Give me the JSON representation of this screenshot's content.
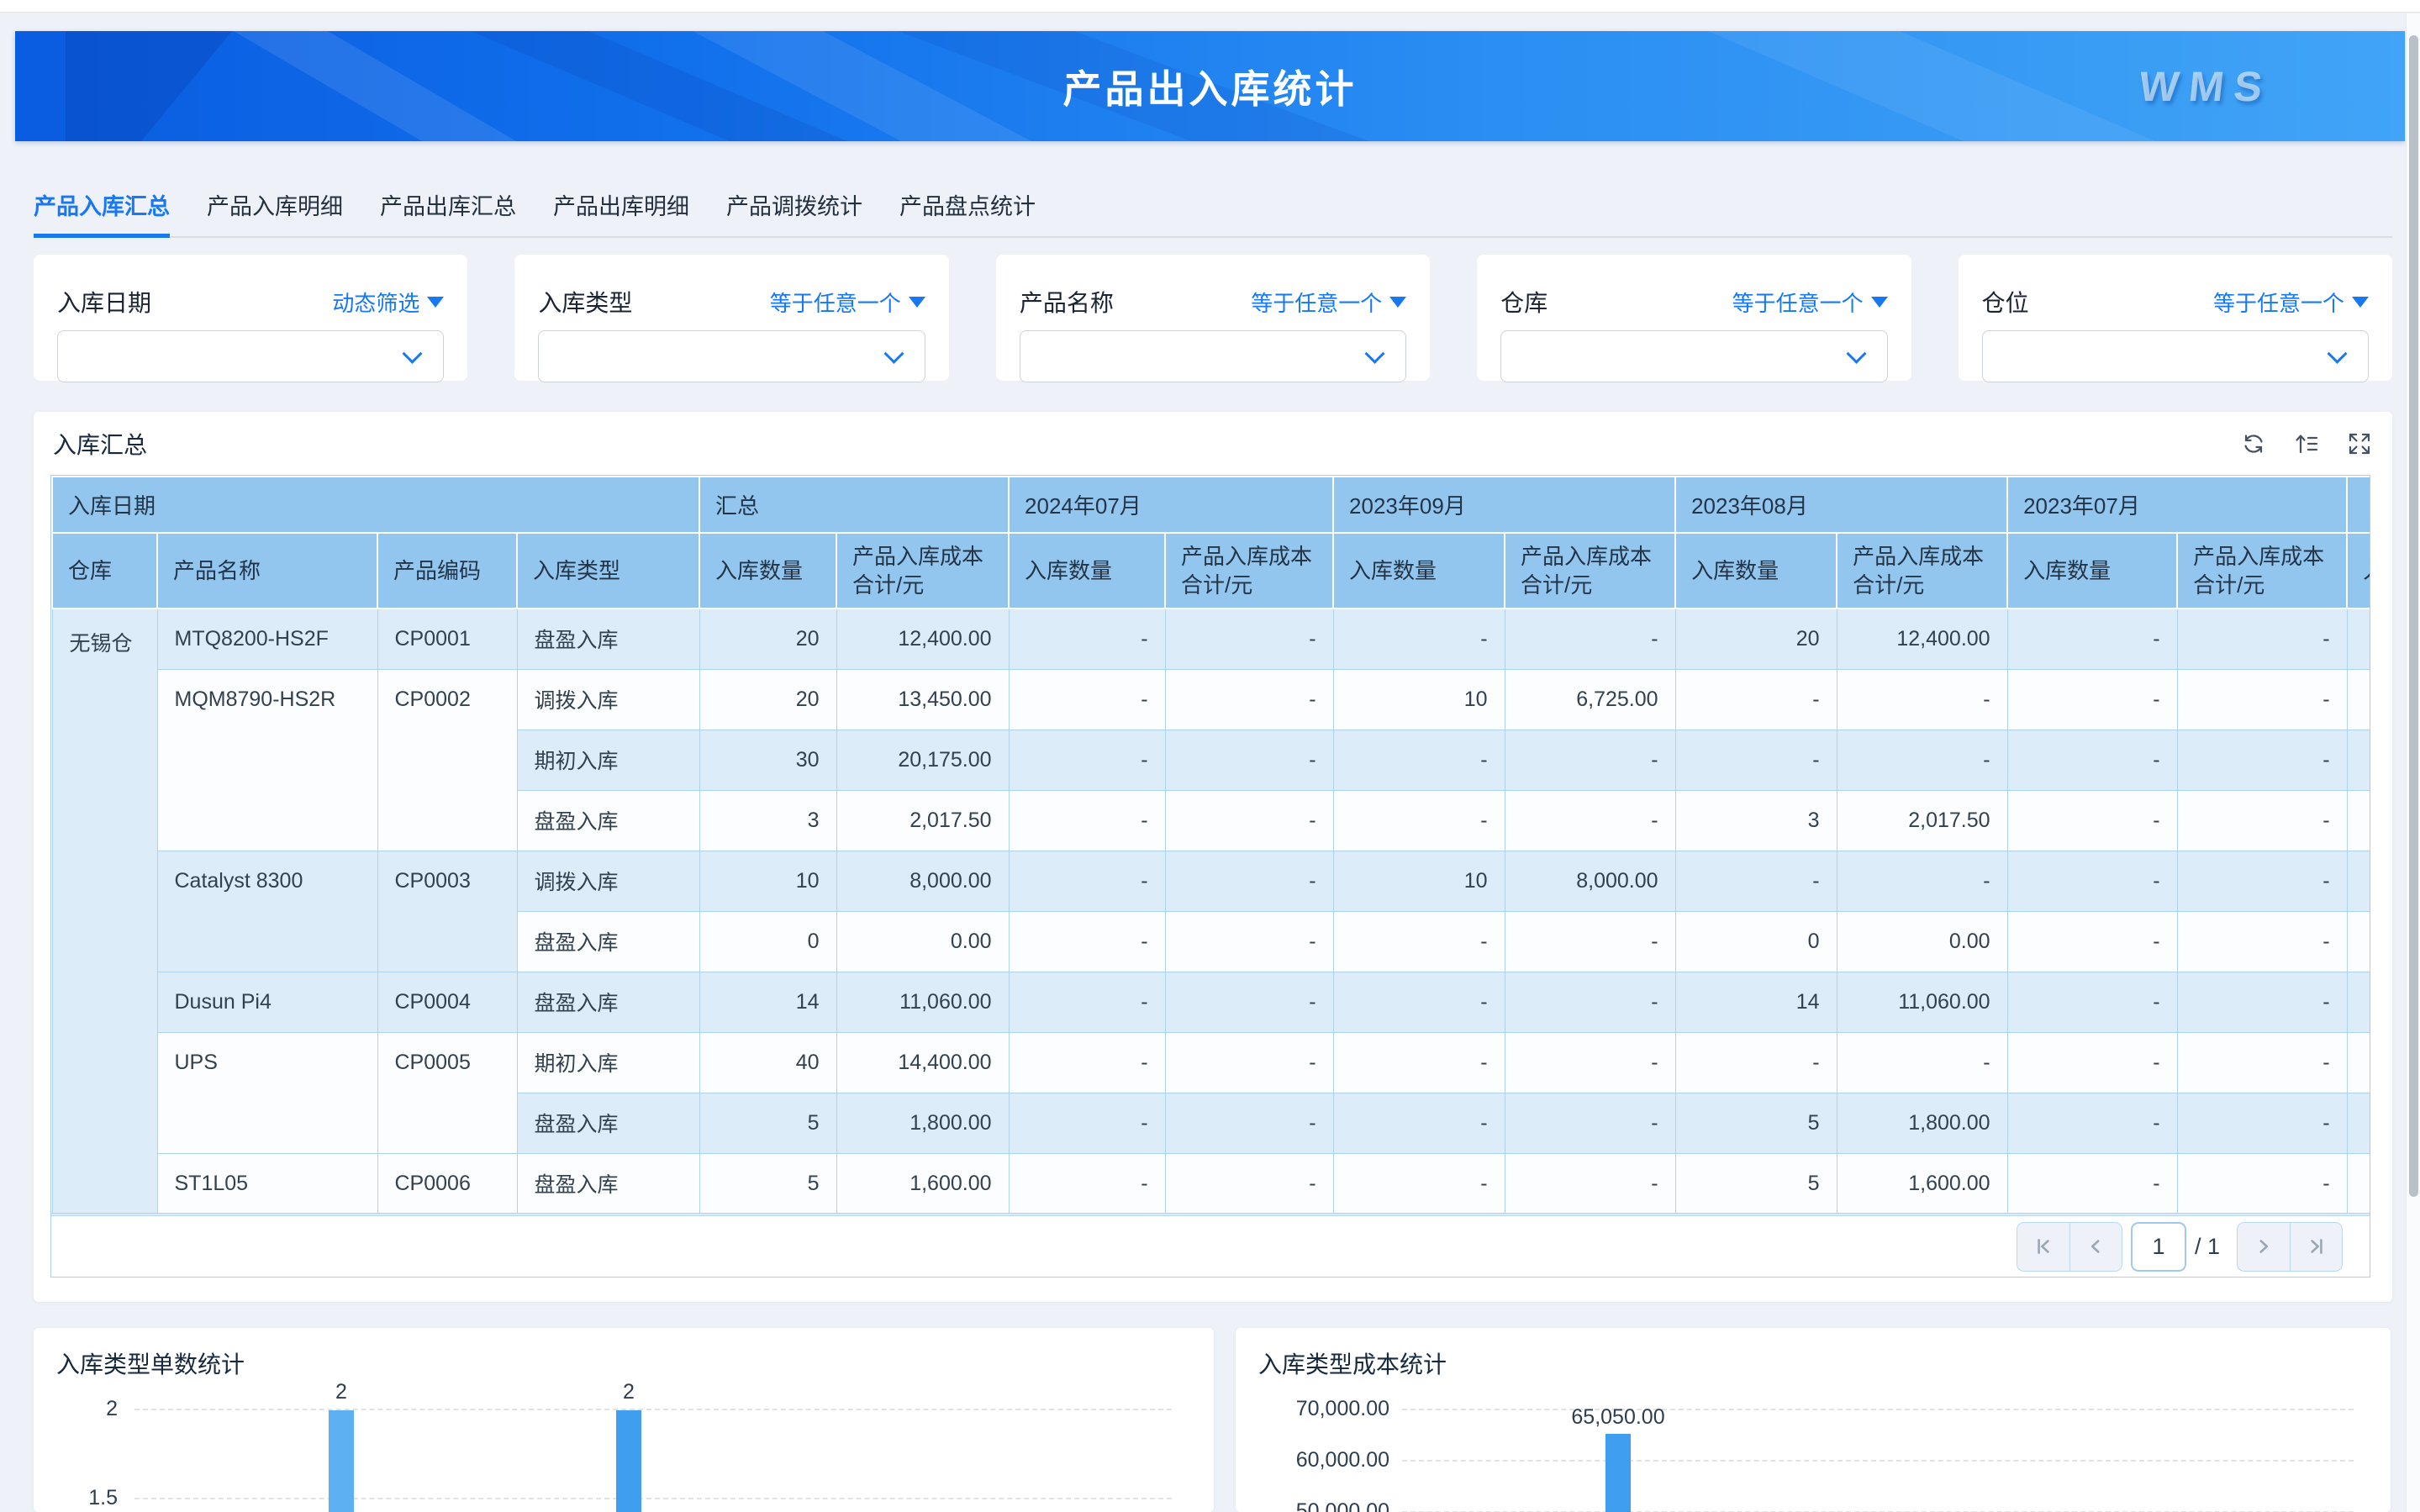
{
  "banner": {
    "title": "产品出入库统计",
    "logo": "WMS"
  },
  "tabs": [
    {
      "label": "产品入库汇总",
      "active": true
    },
    {
      "label": "产品入库明细",
      "active": false
    },
    {
      "label": "产品出库汇总",
      "active": false
    },
    {
      "label": "产品出库明细",
      "active": false
    },
    {
      "label": "产品调拨统计",
      "active": false
    },
    {
      "label": "产品盘点统计",
      "active": false
    }
  ],
  "filters": [
    {
      "label": "入库日期",
      "operator": "动态筛选",
      "value": ""
    },
    {
      "label": "入库类型",
      "operator": "等于任意一个",
      "value": ""
    },
    {
      "label": "产品名称",
      "operator": "等于任意一个",
      "value": ""
    },
    {
      "label": "仓库",
      "operator": "等于任意一个",
      "value": ""
    },
    {
      "label": "仓位",
      "operator": "等于任意一个",
      "value": ""
    }
  ],
  "summary_table": {
    "title": "入库汇总",
    "toolbar": [
      "refresh",
      "sort",
      "fullscreen"
    ],
    "header": {
      "date_group": "入库日期",
      "fixed_columns": [
        "仓库",
        "产品名称",
        "产品编码",
        "入库类型"
      ],
      "groups": [
        "汇总",
        "2024年07月",
        "2023年09月",
        "2023年08月",
        "2023年07月"
      ],
      "measure_columns": [
        "入库数量",
        "产品入库成本\n合计/元"
      ]
    },
    "warehouse": "无锡仓",
    "rows": [
      {
        "product": "MTQ8200-HS2F",
        "code": "CP0001",
        "span": 1,
        "type": "盘盈入库",
        "values": [
          "20",
          "12,400.00",
          "-",
          "-",
          "-",
          "-",
          "20",
          "12,400.00",
          "-",
          "-"
        ]
      },
      {
        "product": "MQM8790-HS2R",
        "code": "CP0002",
        "span": 3,
        "type": "调拨入库",
        "values": [
          "20",
          "13,450.00",
          "-",
          "-",
          "10",
          "6,725.00",
          "-",
          "-",
          "-",
          "-"
        ]
      },
      {
        "type": "期初入库",
        "values": [
          "30",
          "20,175.00",
          "-",
          "-",
          "-",
          "-",
          "-",
          "-",
          "-",
          "-"
        ]
      },
      {
        "type": "盘盈入库",
        "values": [
          "3",
          "2,017.50",
          "-",
          "-",
          "-",
          "-",
          "3",
          "2,017.50",
          "-",
          "-"
        ]
      },
      {
        "product": "Catalyst 8300",
        "code": "CP0003",
        "span": 2,
        "type": "调拨入库",
        "values": [
          "10",
          "8,000.00",
          "-",
          "-",
          "10",
          "8,000.00",
          "-",
          "-",
          "-",
          "-"
        ]
      },
      {
        "type": "盘盈入库",
        "values": [
          "0",
          "0.00",
          "-",
          "-",
          "-",
          "-",
          "0",
          "0.00",
          "-",
          "-"
        ]
      },
      {
        "product": "Dusun Pi4",
        "code": "CP0004",
        "span": 1,
        "type": "盘盈入库",
        "values": [
          "14",
          "11,060.00",
          "-",
          "-",
          "-",
          "-",
          "14",
          "11,060.00",
          "-",
          "-"
        ]
      },
      {
        "product": "UPS",
        "code": "CP0005",
        "span": 2,
        "type": "期初入库",
        "values": [
          "40",
          "14,400.00",
          "-",
          "-",
          "-",
          "-",
          "-",
          "-",
          "-",
          "-"
        ]
      },
      {
        "type": "盘盈入库",
        "values": [
          "5",
          "1,800.00",
          "-",
          "-",
          "-",
          "-",
          "5",
          "1,800.00",
          "-",
          "-"
        ]
      },
      {
        "product": "ST1L05",
        "code": "CP0006",
        "span": 1,
        "type": "盘盈入库",
        "values": [
          "5",
          "1,600.00",
          "-",
          "-",
          "-",
          "-",
          "5",
          "1,600.00",
          "-",
          "-"
        ]
      }
    ],
    "pagination": {
      "page": "1",
      "total": "/ 1"
    }
  },
  "chart_data": [
    {
      "type": "bar",
      "title": "入库类型单数统计",
      "values": [
        2,
        2
      ],
      "value_labels": [
        "2",
        "2"
      ],
      "yticks": [
        "2",
        "1.5"
      ],
      "grid": "dashed",
      "note": "chart clipped at bottom of viewport; category axis not visible"
    },
    {
      "type": "bar",
      "title": "入库类型成本统计",
      "values": [
        65050
      ],
      "value_labels": [
        "65,050.00"
      ],
      "yticks": [
        "70,000.00",
        "60,000.00",
        "50,000.00"
      ],
      "grid": "dashed",
      "note": "chart clipped at bottom of viewport; category axis not visible"
    }
  ],
  "colors": {
    "accent": "#1778f2",
    "table_header_bg": "#92c6ee",
    "row_alt": "#dcecf9",
    "bar_blue": "#3f9ef0",
    "bar_light_blue": "#5db0f2"
  }
}
